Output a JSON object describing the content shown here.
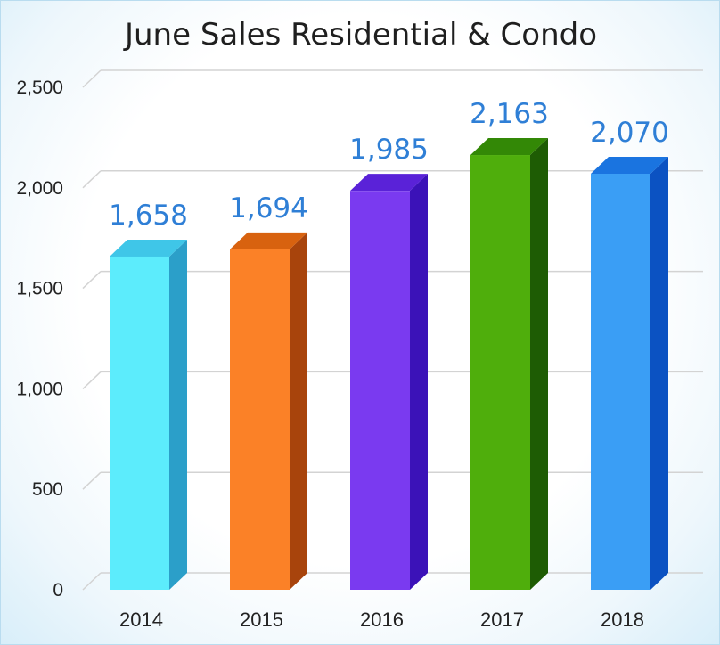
{
  "chart_data": {
    "type": "bar",
    "title": "June Sales Residential & Condo",
    "categories": [
      "2014",
      "2015",
      "2016",
      "2017",
      "2018"
    ],
    "values": [
      1658,
      1694,
      1985,
      2163,
      2070
    ],
    "value_labels": [
      "1,658",
      "1,694",
      "1,985",
      "2,163",
      "2,070"
    ],
    "ylim": [
      0,
      2500
    ],
    "y_ticks": [
      0,
      500,
      1000,
      1500,
      2000,
      2500
    ],
    "y_tick_labels": [
      "0",
      "500",
      "1,000",
      "1,500",
      "2,000",
      "2,500"
    ],
    "grid": true,
    "style": "3d-column",
    "bar_colors": [
      {
        "front": "#5cecfc",
        "side": "#2b9fc9",
        "top": "#3fc6e8"
      },
      {
        "front": "#fb8127",
        "side": "#a8440c",
        "top": "#d8620f"
      },
      {
        "front": "#7a3af0",
        "side": "#3b12b8",
        "top": "#5a22d8"
      },
      {
        "front": "#4fae0c",
        "side": "#1e5c04",
        "top": "#338806"
      },
      {
        "front": "#3a9ef5",
        "side": "#0b52c2",
        "top": "#1a74e0"
      }
    ],
    "label_color": "#2f7fd6"
  }
}
